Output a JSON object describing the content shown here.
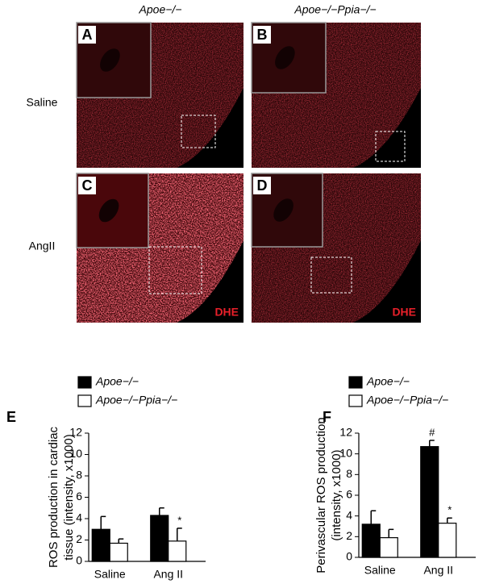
{
  "figure": {
    "column_headers": [
      "Apoe−/−",
      "Apoe−/−Ppia−/−"
    ],
    "row_labels": [
      "Saline",
      "AngII"
    ],
    "panels": [
      "A",
      "B",
      "C",
      "D"
    ],
    "stain_label": "DHE",
    "chart_panels": [
      "E",
      "F"
    ]
  },
  "chart_data": [
    {
      "type": "bar",
      "categories": [
        "Saline",
        "Ang II"
      ],
      "y_label": [
        "ROS production in cardiac",
        "tissue (intensity, x1000)"
      ],
      "ylim": [
        0,
        12
      ],
      "yticks": [
        0,
        2,
        4,
        6,
        8,
        10,
        12
      ],
      "series": [
        {
          "name": "Apoe−/−",
          "color": "#000000",
          "values": [
            3.0,
            4.3
          ],
          "errors": [
            1.2,
            0.7
          ],
          "markers": [
            null,
            null
          ]
        },
        {
          "name": "Apoe−/−Ppia−/−",
          "color": "#ffffff",
          "values": [
            1.7,
            1.9
          ],
          "errors": [
            0.4,
            1.2
          ],
          "markers": [
            null,
            "*"
          ]
        }
      ]
    },
    {
      "type": "bar",
      "categories": [
        "Saline",
        "Ang II"
      ],
      "y_label": [
        "Perivascular ROS production",
        "(intensity, x1000)"
      ],
      "ylim": [
        0,
        12
      ],
      "yticks": [
        0,
        2,
        4,
        6,
        8,
        10,
        12
      ],
      "series": [
        {
          "name": "Apoe−/−",
          "color": "#000000",
          "values": [
            3.2,
            10.7
          ],
          "errors": [
            1.3,
            0.6
          ],
          "markers": [
            null,
            "#"
          ]
        },
        {
          "name": "Apoe−/−Ppia−/−",
          "color": "#ffffff",
          "values": [
            1.9,
            3.3
          ],
          "errors": [
            0.8,
            0.5
          ],
          "markers": [
            null,
            "*"
          ]
        }
      ]
    }
  ]
}
